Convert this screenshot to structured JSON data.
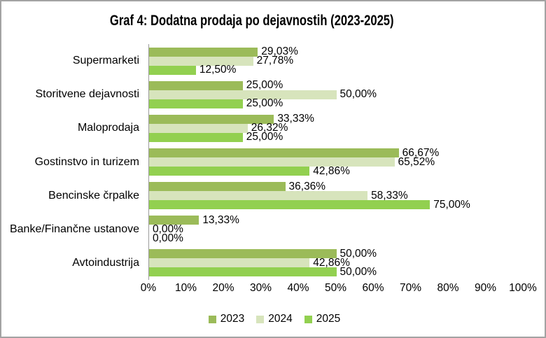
{
  "chart_data": {
    "type": "bar",
    "orientation": "horizontal",
    "title": "Graf 4: Dodatna prodaja po dejavnostih (2023-2025)",
    "categories": [
      "Supermarketi",
      "Storitvene dejavnosti",
      "Maloprodaja",
      "Gostinstvo in turizem",
      "Bencinske črpalke",
      "Banke/Finančne ustanove",
      "Avtoindustrija"
    ],
    "series": [
      {
        "name": "2023",
        "color": "#9BBB59",
        "values": [
          29.03,
          25.0,
          33.33,
          66.67,
          36.36,
          13.33,
          50.0
        ],
        "labels": [
          "29,03%",
          "25,00%",
          "33,33%",
          "66,67%",
          "36,36%",
          "13,33%",
          "50,00%"
        ]
      },
      {
        "name": "2024",
        "color": "#D7E4BC",
        "values": [
          27.78,
          50.0,
          26.32,
          65.52,
          58.33,
          0.0,
          42.86
        ],
        "labels": [
          "27,78%",
          "50,00%",
          "26,32%",
          "65,52%",
          "58,33%",
          "0,00%",
          "42,86%"
        ]
      },
      {
        "name": "2025",
        "color": "#92D050",
        "values": [
          12.5,
          25.0,
          25.0,
          42.86,
          75.0,
          0.0,
          50.0
        ],
        "labels": [
          "12,50%",
          "25,00%",
          "25,00%",
          "42,86%",
          "75,00%",
          "0,00%",
          "50,00%"
        ]
      }
    ],
    "x_axis": {
      "min": 0,
      "max": 100,
      "tick_step": 10,
      "ticks": [
        "0%",
        "10%",
        "20%",
        "30%",
        "40%",
        "50%",
        "60%",
        "70%",
        "80%",
        "90%",
        "100%"
      ]
    },
    "legend": [
      "2023",
      "2024",
      "2025"
    ],
    "legend_position": "bottom",
    "grid": false,
    "data_labels": "outside-end"
  }
}
